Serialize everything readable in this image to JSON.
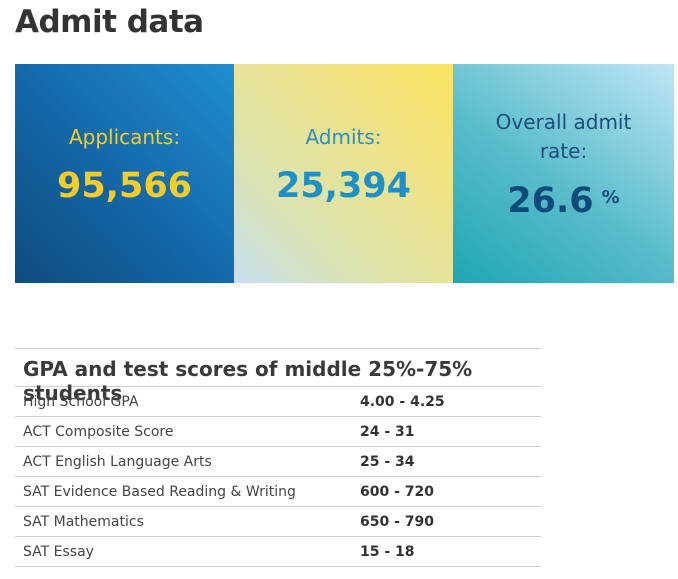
{
  "page": {
    "title": "Admit data"
  },
  "stats": [
    {
      "label": "Applicants:",
      "value": "95,566"
    },
    {
      "label": "Admits:",
      "value": "25,394"
    },
    {
      "label": "Overall admit rate:",
      "value": "26.6",
      "unit": "%"
    }
  ],
  "colors": {
    "applicants_tile": "#1466a6",
    "admits_tile": "#eee38a",
    "rate_tile": "#58bccb",
    "applicants_text": "#f5cc2a",
    "admits_text": "#1f8fc8",
    "rate_text": "#0e4b78"
  },
  "scores": {
    "title": "GPA and test scores of middle 25%-75% students",
    "rows": [
      {
        "label": "High School GPA",
        "value": "4.00 - 4.25"
      },
      {
        "label": "ACT Composite Score",
        "value": "24 - 31"
      },
      {
        "label": "ACT English Language Arts",
        "value": "25 - 34"
      },
      {
        "label": "SAT Evidence Based Reading & Writing",
        "value": "600 - 720"
      },
      {
        "label": "SAT Mathematics",
        "value": "650 - 790"
      },
      {
        "label": "SAT Essay",
        "value": "15 - 18"
      }
    ]
  }
}
